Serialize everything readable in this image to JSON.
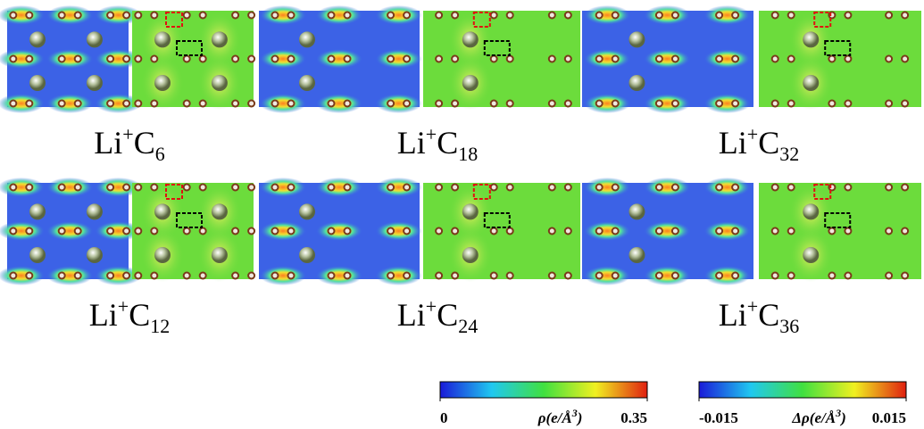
{
  "panels": [
    {
      "base": "Li",
      "sup": "+",
      "el": "C",
      "sub": "6"
    },
    {
      "base": "Li",
      "sup": "+",
      "el": "C",
      "sub": "18"
    },
    {
      "base": "Li",
      "sup": "+",
      "el": "C",
      "sub": "32"
    },
    {
      "base": "Li",
      "sup": "+",
      "el": "C",
      "sub": "12"
    },
    {
      "base": "Li",
      "sup": "+",
      "el": "C",
      "sub": "24"
    },
    {
      "base": "Li",
      "sup": "+",
      "el": "C",
      "sub": "36"
    }
  ],
  "colorbars": [
    {
      "label": "ρ(e/Å",
      "label_sup": "3",
      "label_end": ")",
      "lim": [
        0,
        0.35
      ],
      "ticks": [
        0,
        0.35
      ]
    },
    {
      "label": "Δρ(e/Å",
      "label_sup": "3",
      "label_end": ")",
      "lim": [
        -0.015,
        0.015
      ],
      "ticks": [
        -0.015,
        0.015
      ]
    }
  ]
}
